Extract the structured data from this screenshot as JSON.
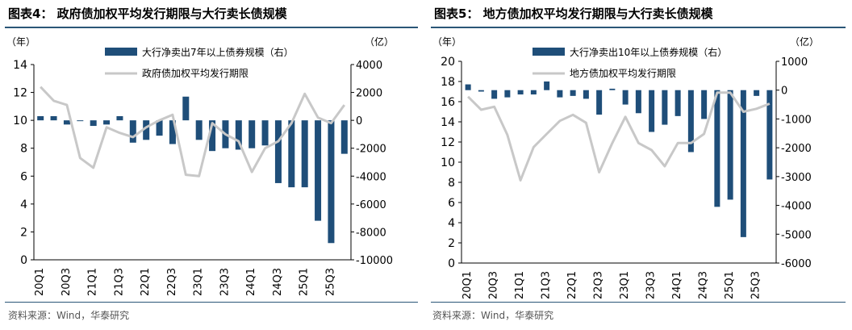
{
  "source_text": "资料来源：Wind，华泰研究",
  "colors": {
    "bar": "#1f4e79",
    "line": "#c8c8c8",
    "rule": "#2a5677",
    "axis": "#000000"
  },
  "chart_data": [
    {
      "type": "bar",
      "fig_title": "图表4：  政府债加权平均发行期限与大行卖长债规模",
      "left_unit": "（年）",
      "right_unit": "（亿）",
      "left_ticks": [
        "0",
        "2",
        "4",
        "6",
        "8",
        "10",
        "12",
        "14"
      ],
      "right_ticks": [
        "-10000",
        "-8000",
        "-6000",
        "-4000",
        "-2000",
        "0",
        "2000",
        "4000"
      ],
      "ylim_left": [
        0,
        14
      ],
      "ylim_right": [
        -10000,
        4000
      ],
      "x_tick_labels": [
        "20Q1",
        "20Q3",
        "21Q1",
        "21Q3",
        "22Q1",
        "22Q3",
        "23Q1",
        "23Q3",
        "24Q1",
        "24Q3",
        "25Q1",
        "25Q3"
      ],
      "series": [
        {
          "name": "大行净卖出7年以上债券规模（右）",
          "kind": "bar",
          "axis": "right",
          "values": [
            300,
            300,
            -300,
            0,
            -400,
            -300,
            300,
            -1600,
            -1400,
            -1100,
            -1700,
            1700,
            -1400,
            -2200,
            -2000,
            -2100,
            -2000,
            -1800,
            -4500,
            -4800,
            -4800,
            -7200,
            -8800,
            -2400
          ]
        },
        {
          "name": "政府债加权平均发行期限",
          "kind": "line",
          "axis": "left",
          "values": [
            12.4,
            11.4,
            11.1,
            7.3,
            6.6,
            9.5,
            9.1,
            8.8,
            9.5,
            10.0,
            10.4,
            6.1,
            6.0,
            9.8,
            9.0,
            8.5,
            6.3,
            8.0,
            8.5,
            9.8,
            11.9,
            10.2,
            9.8,
            11.1
          ]
        }
      ]
    },
    {
      "type": "bar",
      "fig_title": "图表5：  地方债加权平均发行期限与大行卖长债规模",
      "left_unit": "（年）",
      "right_unit": "（亿）",
      "left_ticks": [
        "0",
        "2",
        "4",
        "6",
        "8",
        "10",
        "12",
        "14",
        "16",
        "18",
        "20"
      ],
      "right_ticks": [
        "-6000",
        "-5000",
        "-4000",
        "-3000",
        "-2000",
        "-1000",
        "0",
        "1000"
      ],
      "ylim_left": [
        0,
        20
      ],
      "ylim_right": [
        -6000,
        1000
      ],
      "x_tick_labels": [
        "20Q1",
        "20Q3",
        "21Q1",
        "21Q3",
        "22Q1",
        "22Q3",
        "23Q1",
        "23Q3",
        "24Q1",
        "24Q3",
        "25Q1",
        "25Q3"
      ],
      "series": [
        {
          "name": "大行净卖出10年以上债券规模（右）",
          "kind": "bar",
          "axis": "right",
          "values": [
            200,
            -50,
            -300,
            -250,
            -150,
            -150,
            300,
            -250,
            -200,
            -300,
            -850,
            50,
            -500,
            -800,
            -1450,
            -1200,
            -900,
            -2150,
            -1000,
            -4050,
            -3800,
            -5100,
            -200,
            -3100
          ]
        },
        {
          "name": "地方债加权平均发行期限",
          "kind": "line",
          "axis": "left",
          "values": [
            16.5,
            15.2,
            15.5,
            12.7,
            8.2,
            11.5,
            12.8,
            14.1,
            14.7,
            13.9,
            9.0,
            11.9,
            14.5,
            11.9,
            11.2,
            9.6,
            11.9,
            11.9,
            12.8,
            16.9,
            16.9,
            15.0,
            15.3,
            15.8
          ]
        }
      ]
    }
  ]
}
